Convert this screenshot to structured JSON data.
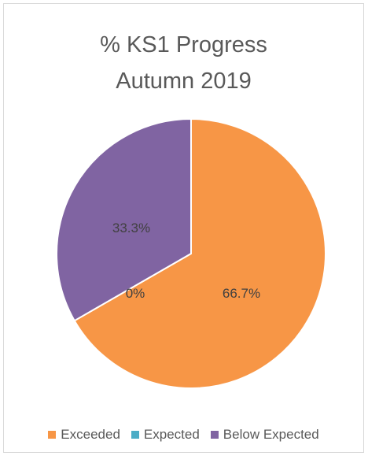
{
  "chart_data": {
    "type": "pie",
    "title_lines": [
      "% KS1 Progress",
      "Autumn 2019"
    ],
    "categories": [
      "Exceeded",
      "Expected",
      "Below Expected"
    ],
    "values": [
      66.7,
      0,
      33.3
    ],
    "data_labels": [
      "66.7%",
      "0%",
      "33.3%"
    ],
    "colors": [
      "#F79646",
      "#4BACC6",
      "#8064A2"
    ],
    "legend_position": "bottom",
    "slice_border_color": "#ffffff"
  }
}
